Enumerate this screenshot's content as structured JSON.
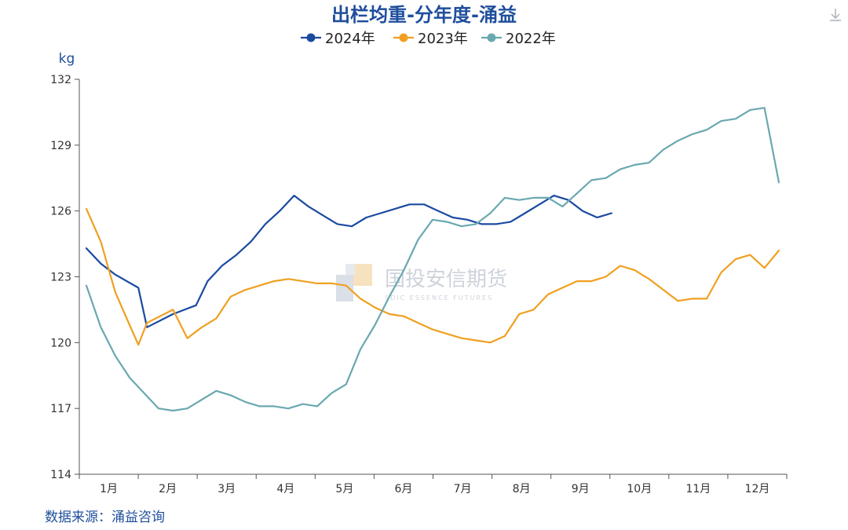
{
  "chart_data": {
    "type": "line",
    "title": "出栏均重-分年度-涌益",
    "ylabel": "kg",
    "ylim": [
      114,
      132
    ],
    "yticks": [
      114,
      117,
      120,
      123,
      126,
      129,
      132
    ],
    "categories": [
      "1月",
      "2月",
      "3月",
      "4月",
      "5月",
      "6月",
      "7月",
      "8月",
      "9月",
      "10月",
      "11月",
      "12月"
    ],
    "legend_position": "top-center",
    "source": "数据来源：涌益咨询",
    "watermark": {
      "cn": "国投安信期货",
      "en": "SDIC ESSENCE FUTURES"
    },
    "series": [
      {
        "name": "2024年",
        "color": "#1a4aa0",
        "x": [
          0.0,
          0.25,
          0.5,
          0.9,
          1.05,
          1.5,
          1.9,
          2.1,
          2.35,
          2.6,
          2.85,
          3.1,
          3.35,
          3.6,
          3.85,
          4.1,
          4.35,
          4.6,
          4.85,
          5.1,
          5.35,
          5.6,
          5.85,
          6.1,
          6.35,
          6.6,
          6.85,
          7.1,
          7.35,
          7.6,
          7.85,
          8.1,
          8.35,
          8.6,
          8.85,
          9.1
        ],
        "values": [
          124.3,
          123.6,
          123.1,
          122.5,
          120.7,
          121.3,
          121.7,
          122.8,
          123.5,
          124.0,
          124.6,
          125.4,
          126.0,
          126.7,
          126.2,
          125.8,
          125.4,
          125.3,
          125.7,
          125.9,
          126.1,
          126.3,
          126.3,
          126.0,
          125.7,
          125.6,
          125.4,
          125.4,
          125.5,
          125.9,
          126.3,
          126.7,
          126.5,
          126.0,
          125.7,
          125.9
        ]
      },
      {
        "name": "2023年",
        "color": "#f0a020",
        "x": [
          0.0,
          0.25,
          0.5,
          0.75,
          0.9,
          1.05,
          1.5,
          1.75,
          2.0,
          2.25,
          2.5,
          2.75,
          3.0,
          3.25,
          3.5,
          3.75,
          4.0,
          4.25,
          4.5,
          4.75,
          5.0,
          5.25,
          5.5,
          5.75,
          6.0,
          6.25,
          6.5,
          6.75,
          7.0,
          7.25,
          7.5,
          7.75,
          8.0,
          8.25,
          8.5,
          8.75,
          9.0,
          9.25,
          9.5,
          9.75,
          10.0,
          10.25,
          10.5,
          10.75,
          11.0,
          11.25,
          11.5,
          11.75,
          12.0
        ],
        "values": [
          126.1,
          124.6,
          122.3,
          120.8,
          119.9,
          120.9,
          121.5,
          120.2,
          120.7,
          121.1,
          122.1,
          122.4,
          122.6,
          122.8,
          122.9,
          122.8,
          122.7,
          122.7,
          122.6,
          122.0,
          121.6,
          121.3,
          121.2,
          120.9,
          120.6,
          120.4,
          120.2,
          120.1,
          120.0,
          120.3,
          121.3,
          121.5,
          122.2,
          122.5,
          122.8,
          122.8,
          123.0,
          123.5,
          123.3,
          122.9,
          122.4,
          121.9,
          122.0,
          122.0,
          123.2,
          123.8,
          124.0,
          123.4,
          124.2
        ]
      },
      {
        "name": "2022年",
        "color": "#6aa8b0",
        "x": [
          0.0,
          0.25,
          0.5,
          0.75,
          1.0,
          1.25,
          1.5,
          1.75,
          2.0,
          2.25,
          2.5,
          2.75,
          3.0,
          3.25,
          3.5,
          3.75,
          4.0,
          4.25,
          4.5,
          4.75,
          5.0,
          5.25,
          5.5,
          5.75,
          6.0,
          6.25,
          6.5,
          6.75,
          7.0,
          7.25,
          7.5,
          7.75,
          8.0,
          8.25,
          8.5,
          8.75,
          9.0,
          9.25,
          9.5,
          9.75,
          10.0,
          10.25,
          10.5,
          10.75,
          11.0,
          11.25,
          11.5,
          11.75,
          12.0
        ],
        "values": [
          122.6,
          120.7,
          119.4,
          118.4,
          117.7,
          117.0,
          116.9,
          117.0,
          117.4,
          117.8,
          117.6,
          117.3,
          117.1,
          117.1,
          117.0,
          117.2,
          117.1,
          117.7,
          118.1,
          119.7,
          120.8,
          122.1,
          123.3,
          124.7,
          125.6,
          125.5,
          125.3,
          125.4,
          125.9,
          126.6,
          126.5,
          126.6,
          126.6,
          126.2,
          126.8,
          127.4,
          127.5,
          127.9,
          128.1,
          128.2,
          128.8,
          129.2,
          129.5,
          129.7,
          130.1,
          130.2,
          130.6,
          130.7,
          127.3
        ]
      }
    ]
  }
}
